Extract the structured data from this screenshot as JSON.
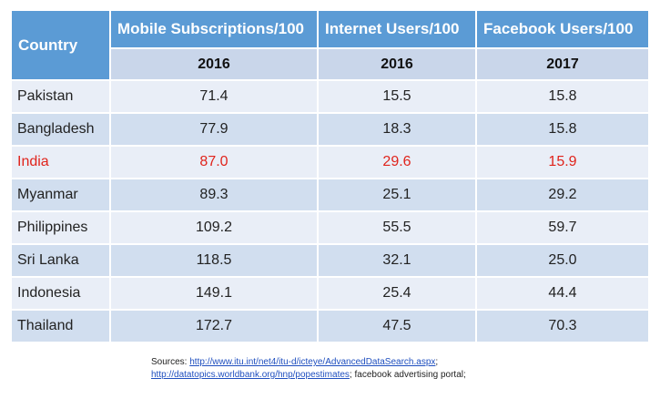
{
  "chart_data": {
    "type": "table",
    "columns": [
      "Country",
      "Mobile Subscriptions/100",
      "Internet Users/100",
      "Facebook Users/100"
    ],
    "years": [
      "2016",
      "2016",
      "2017"
    ],
    "rows": [
      {
        "country": "Pakistan",
        "values": [
          "71.4",
          "15.5",
          "15.8"
        ],
        "highlight": false
      },
      {
        "country": "Bangladesh",
        "values": [
          "77.9",
          "18.3",
          "15.8"
        ],
        "highlight": false
      },
      {
        "country": "India",
        "values": [
          "87.0",
          "29.6",
          "15.9"
        ],
        "highlight": true
      },
      {
        "country": "Myanmar",
        "values": [
          "89.3",
          "25.1",
          "29.2"
        ],
        "highlight": false
      },
      {
        "country": "Philippines",
        "values": [
          "109.2",
          "55.5",
          "59.7"
        ],
        "highlight": false
      },
      {
        "country": "Sri Lanka",
        "values": [
          "118.5",
          "32.1",
          "25.0"
        ],
        "highlight": false
      },
      {
        "country": "Indonesia",
        "values": [
          "149.1",
          "25.4",
          "44.4"
        ],
        "highlight": false
      },
      {
        "country": "Thailand",
        "values": [
          "172.7",
          "47.5",
          "70.3"
        ],
        "highlight": false
      }
    ]
  },
  "sources": {
    "prefix": "Sources: ",
    "link1": "http://www.itu.int/net4/itu-d/icteye/AdvancedDataSearch.aspx",
    "sep1": ";",
    "link2": "http://datatopics.worldbank.org/hnp/popestimates",
    "sep2": ";  facebook advertising portal;"
  },
  "colors": {
    "header_bg": "#5b9bd5",
    "subheader_bg": "#c9d6ea",
    "row_light": "#e9eef7",
    "row_dark": "#d1deef",
    "highlight_text": "#e0241c"
  }
}
